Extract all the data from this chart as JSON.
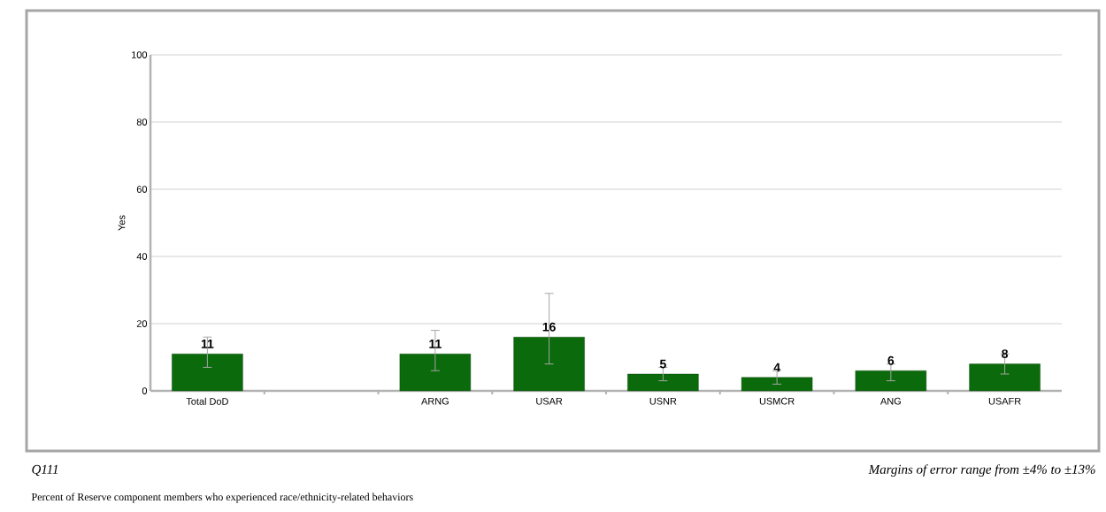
{
  "chart_data": {
    "type": "bar",
    "categories": [
      "Total DoD",
      null,
      "ARNG",
      "USAR",
      "USNR",
      "USMCR",
      "ANG",
      "USAFR"
    ],
    "values": [
      11,
      null,
      11,
      16,
      5,
      4,
      6,
      8
    ],
    "errors": [
      [
        7,
        16
      ],
      null,
      [
        6,
        18
      ],
      [
        8,
        29
      ],
      [
        3,
        7
      ],
      [
        2,
        6
      ],
      [
        3,
        8
      ],
      [
        5,
        11
      ]
    ],
    "color": "#0b6a0b",
    "ylabel": "Yes",
    "ylim": [
      0,
      100
    ],
    "yticks": [
      0,
      20,
      40,
      60,
      80,
      100
    ],
    "grid": "y",
    "data_labels": true,
    "annotations": [
      "Q111",
      "Margins of error range from ±4% to ±13%",
      "Percent of Reserve component members who experienced race/ethnicity-related behaviors"
    ]
  }
}
